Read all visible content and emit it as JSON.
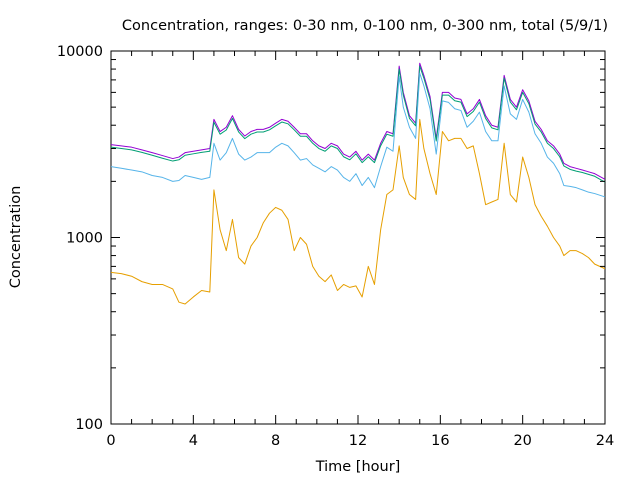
{
  "chart_data": {
    "type": "line",
    "title": "Concentration, ranges: 0-30 nm, 0-100 nm, 0-300 nm, total (5/9/1)",
    "xlabel": "Time [hour]",
    "ylabel": "Concentration",
    "xlim": [
      0,
      24
    ],
    "ylim": [
      100,
      10000
    ],
    "y_scale": "log",
    "grid": false,
    "legend": "none",
    "x_ticks": [
      0,
      4,
      8,
      12,
      16,
      20,
      24
    ],
    "y_ticks": [
      100,
      1000,
      10000
    ],
    "x_tick_labels": [
      "0",
      "4",
      "8",
      "12",
      "16",
      "20",
      "24"
    ],
    "y_tick_labels": [
      "100",
      "1000",
      "10000"
    ],
    "x": [
      0,
      0.5,
      1,
      1.5,
      2,
      2.5,
      3,
      3.3,
      3.6,
      4,
      4.4,
      4.8,
      5,
      5.3,
      5.6,
      5.9,
      6.2,
      6.5,
      6.8,
      7.1,
      7.4,
      7.7,
      8,
      8.3,
      8.6,
      8.9,
      9.2,
      9.5,
      9.8,
      10.1,
      10.4,
      10.7,
      11,
      11.3,
      11.6,
      11.9,
      12.2,
      12.5,
      12.8,
      13.1,
      13.4,
      13.7,
      14,
      14.2,
      14.5,
      14.8,
      15,
      15.2,
      15.5,
      15.8,
      16.1,
      16.4,
      16.7,
      17,
      17.3,
      17.6,
      17.9,
      18.2,
      18.5,
      18.8,
      19.1,
      19.4,
      19.7,
      20,
      20.3,
      20.6,
      20.9,
      21.2,
      21.5,
      21.8,
      22,
      22.3,
      22.6,
      22.9,
      23.2,
      23.5,
      24
    ],
    "series": [
      {
        "color": "#9400d3",
        "values": [
          3150,
          3100,
          3050,
          2950,
          2850,
          2750,
          2650,
          2700,
          2850,
          2900,
          2950,
          3000,
          4300,
          3700,
          3900,
          4500,
          3800,
          3500,
          3700,
          3800,
          3800,
          3900,
          4100,
          4300,
          4200,
          3900,
          3600,
          3600,
          3300,
          3100,
          3000,
          3200,
          3100,
          2800,
          2700,
          2900,
          2600,
          2800,
          2600,
          3200,
          3700,
          3600,
          8300,
          6000,
          4500,
          4100,
          8600,
          7400,
          5700,
          3400,
          6000,
          6000,
          5600,
          5500,
          4600,
          4900,
          5500,
          4500,
          4000,
          3900,
          7400,
          5500,
          5000,
          6200,
          5400,
          4200,
          3800,
          3300,
          3100,
          2800,
          2500,
          2400,
          2350,
          2300,
          2250,
          2200,
          2050
        ]
      },
      {
        "color": "#009e73",
        "values": [
          3050,
          3000,
          2950,
          2860,
          2760,
          2660,
          2570,
          2610,
          2760,
          2810,
          2860,
          2900,
          4150,
          3580,
          3770,
          4350,
          3680,
          3390,
          3580,
          3680,
          3680,
          3780,
          3970,
          4160,
          4070,
          3780,
          3490,
          3490,
          3200,
          3000,
          2900,
          3100,
          3000,
          2710,
          2610,
          2810,
          2520,
          2710,
          2520,
          3100,
          3580,
          3490,
          8000,
          5800,
          4350,
          3970,
          8300,
          7150,
          5500,
          3290,
          5800,
          5800,
          5410,
          5320,
          4450,
          4740,
          5320,
          4350,
          3870,
          3780,
          7150,
          5320,
          4840,
          6000,
          5220,
          4060,
          3680,
          3200,
          3000,
          2710,
          2420,
          2320,
          2270,
          2230,
          2180,
          2130,
          1980
        ]
      },
      {
        "color": "#56b4e9",
        "values": [
          2400,
          2350,
          2300,
          2250,
          2150,
          2100,
          2000,
          2020,
          2150,
          2100,
          2050,
          2100,
          3200,
          2600,
          2850,
          3400,
          2800,
          2600,
          2700,
          2850,
          2850,
          2850,
          3050,
          3200,
          3100,
          2850,
          2600,
          2650,
          2450,
          2350,
          2250,
          2400,
          2300,
          2100,
          2000,
          2200,
          1900,
          2100,
          1850,
          2400,
          3050,
          2900,
          7300,
          5000,
          3900,
          3400,
          7600,
          6500,
          4900,
          2800,
          5400,
          5300,
          4900,
          4800,
          3900,
          4200,
          4700,
          3700,
          3300,
          3300,
          6500,
          4600,
          4300,
          5500,
          4700,
          3600,
          3200,
          2700,
          2500,
          2200,
          1900,
          1880,
          1850,
          1800,
          1750,
          1720,
          1650
        ]
      },
      {
        "color": "#e69f00",
        "values": [
          650,
          640,
          620,
          580,
          560,
          560,
          530,
          450,
          440,
          480,
          520,
          510,
          1800,
          1100,
          850,
          1250,
          780,
          720,
          900,
          1000,
          1200,
          1350,
          1450,
          1400,
          1250,
          850,
          1000,
          920,
          700,
          620,
          580,
          630,
          520,
          560,
          540,
          550,
          480,
          700,
          560,
          1100,
          1700,
          1800,
          3100,
          2100,
          1700,
          1600,
          4300,
          3000,
          2200,
          1700,
          3700,
          3300,
          3400,
          3400,
          3000,
          3100,
          2200,
          1500,
          1550,
          1600,
          3200,
          1700,
          1550,
          2700,
          2100,
          1500,
          1300,
          1150,
          1000,
          900,
          800,
          850,
          850,
          820,
          780,
          720,
          680
        ]
      }
    ]
  }
}
